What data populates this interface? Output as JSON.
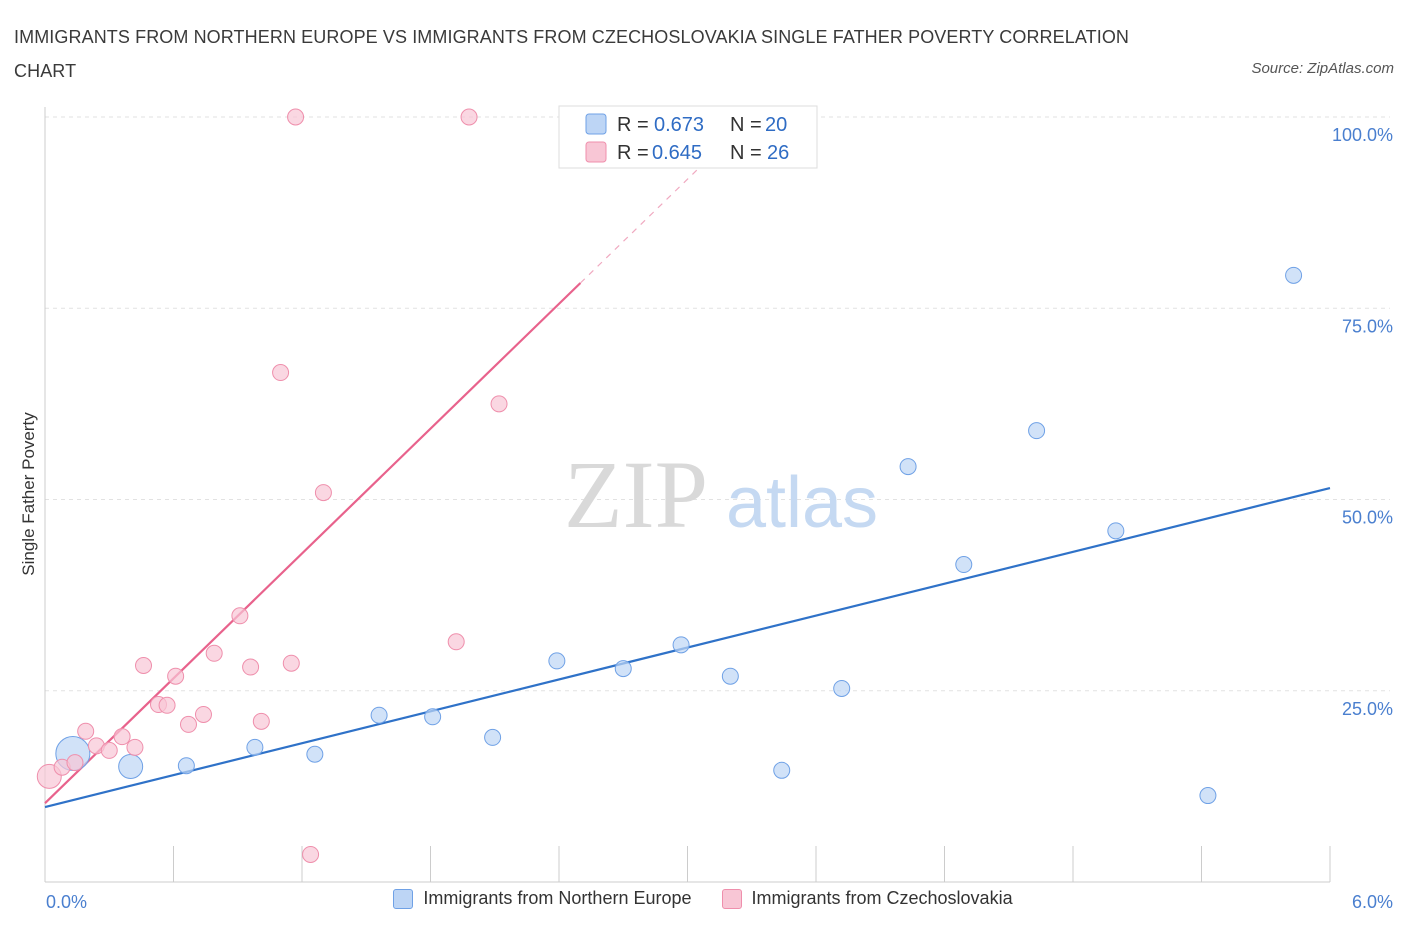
{
  "title": "IMMIGRANTS FROM NORTHERN EUROPE VS IMMIGRANTS FROM CZECHOSLOVAKIA SINGLE FATHER POVERTY CORRELATION CHART",
  "source": "Source: ZipAtlas.com",
  "watermark": {
    "zip": "ZIP",
    "atlas": "atlas"
  },
  "chart_data": {
    "type": "scatter",
    "ylabel": "Single Father Poverty",
    "xlim": [
      0,
      6
    ],
    "ylim": [
      0,
      100
    ],
    "x_tick_labels": [
      "0.0%",
      "6.0%"
    ],
    "y_ticks": [
      25,
      50,
      75,
      100
    ],
    "y_tick_labels": [
      "25.0%",
      "50.0%",
      "75.0%",
      "100.0%"
    ],
    "grid": true,
    "legend_position": "top-center",
    "series": [
      {
        "name": "Immigrants from Northern Europe",
        "color": "#6fa1e6",
        "fill": "#bdd5f5",
        "R": "0.673",
        "N": "20",
        "trend": {
          "x": [
            0,
            6
          ],
          "y": [
            9.8,
            51.5
          ]
        },
        "points": [
          {
            "x": 0.13,
            "y": 16.8,
            "size": "large"
          },
          {
            "x": 0.4,
            "y": 15.1,
            "size": "medium"
          },
          {
            "x": 0.66,
            "y": 15.2
          },
          {
            "x": 0.98,
            "y": 17.6
          },
          {
            "x": 1.26,
            "y": 16.7
          },
          {
            "x": 1.56,
            "y": 21.8
          },
          {
            "x": 1.81,
            "y": 21.6
          },
          {
            "x": 2.09,
            "y": 18.9
          },
          {
            "x": 2.39,
            "y": 28.9
          },
          {
            "x": 2.7,
            "y": 27.9
          },
          {
            "x": 2.97,
            "y": 31.0
          },
          {
            "x": 3.2,
            "y": 26.9
          },
          {
            "x": 3.44,
            "y": 14.6
          },
          {
            "x": 3.72,
            "y": 25.3
          },
          {
            "x": 4.03,
            "y": 54.3
          },
          {
            "x": 4.29,
            "y": 41.5
          },
          {
            "x": 4.63,
            "y": 59.0
          },
          {
            "x": 5.0,
            "y": 45.9
          },
          {
            "x": 5.43,
            "y": 11.3
          },
          {
            "x": 5.83,
            "y": 79.3
          }
        ]
      },
      {
        "name": "Immigrants from Czechoslovakia",
        "color": "#ef8fac",
        "fill": "#f8c6d5",
        "R": "0.645",
        "N": "26",
        "trend": {
          "x": [
            0,
            2.5
          ],
          "y": [
            10.3,
            78.3
          ],
          "dash_to": [
            3.2,
            97.3
          ]
        },
        "points": [
          {
            "x": 0.02,
            "y": 13.8,
            "size": "medium"
          },
          {
            "x": 0.08,
            "y": 15.0
          },
          {
            "x": 0.14,
            "y": 15.6
          },
          {
            "x": 0.19,
            "y": 19.7
          },
          {
            "x": 0.24,
            "y": 17.8
          },
          {
            "x": 0.3,
            "y": 17.2
          },
          {
            "x": 0.36,
            "y": 19.0
          },
          {
            "x": 0.42,
            "y": 17.6
          },
          {
            "x": 0.46,
            "y": 28.3
          },
          {
            "x": 0.53,
            "y": 23.2
          },
          {
            "x": 0.57,
            "y": 23.1
          },
          {
            "x": 0.61,
            "y": 26.9
          },
          {
            "x": 0.67,
            "y": 20.6
          },
          {
            "x": 0.74,
            "y": 21.9
          },
          {
            "x": 0.79,
            "y": 29.9
          },
          {
            "x": 0.91,
            "y": 34.8
          },
          {
            "x": 0.96,
            "y": 28.1
          },
          {
            "x": 1.01,
            "y": 21.0
          },
          {
            "x": 1.1,
            "y": 66.6
          },
          {
            "x": 1.15,
            "y": 28.6
          },
          {
            "x": 1.17,
            "y": 100.0
          },
          {
            "x": 1.24,
            "y": 3.6
          },
          {
            "x": 1.3,
            "y": 50.9
          },
          {
            "x": 1.92,
            "y": 31.4
          },
          {
            "x": 1.98,
            "y": 100.0
          },
          {
            "x": 2.12,
            "y": 62.5
          }
        ]
      }
    ]
  }
}
